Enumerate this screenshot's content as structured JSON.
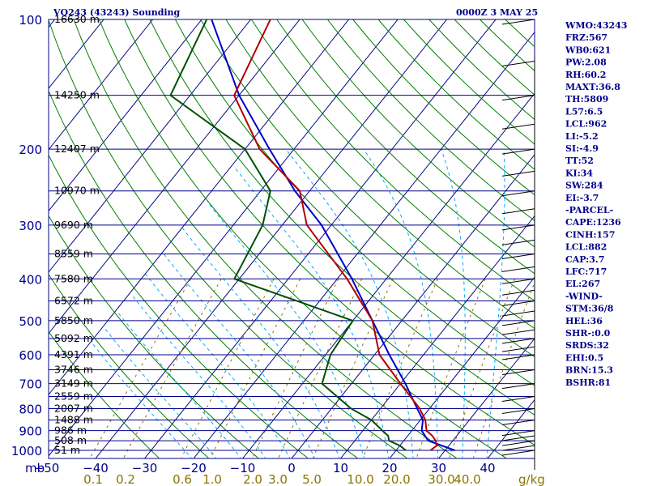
{
  "header": {
    "station": "VQ243 (43243) Sounding",
    "time": "0000Z  3 MAY 25"
  },
  "indices": [
    "WMO:43243",
    "FRZ:567",
    "WB0:621",
    "PW:2.08",
    "RH:60.2",
    "MAXT:36.8",
    "TH:5809",
    "L57:6.5",
    "LCL:962",
    "LI:-5.2",
    "SI:-4.9",
    "TT:52",
    "KI:34",
    "SW:284",
    "EI:-3.7",
    "-PARCEL-",
    "CAPE:1236",
    "CINH:157",
    "LCL:882",
    "CAP:3.7",
    "LFC:717",
    "EL:267",
    "-WIND-",
    "STM:36/8",
    "HEL:36",
    "SHR-:0.0",
    "SRDS:32",
    "EHI:0.5",
    "BRN:15.3",
    "BSHR:81"
  ],
  "colors": {
    "isobar": "#00008b",
    "isotherm": "#000080",
    "dry_adiabat": "#008000",
    "moist_adiabat": "#00aaff",
    "mixing_ratio": "#8b7500",
    "temperature": "#b00000",
    "dewpoint": "#005000",
    "parcel": "#0000c8"
  },
  "chart_data": {
    "type": "skew-t",
    "title": "VQ243 (43243) Sounding",
    "valid": "0000Z  3 MAY 25",
    "x_unit_label": "mb",
    "mixing_ratio_unit": "g/kg",
    "pressure_ticks": [
      100,
      200,
      300,
      400,
      500,
      600,
      700,
      800,
      900,
      1000
    ],
    "temperature_ticks": [
      -50,
      -40,
      -30,
      -20,
      -10,
      0,
      10,
      20,
      30,
      40
    ],
    "mixing_ratio_ticks": [
      "0.1",
      "0.2",
      "0.6",
      "1.0",
      "2.0",
      "3.0",
      "5.0",
      "10.0",
      "20.0",
      "30.0",
      "40.0"
    ],
    "height_levels": [
      {
        "p": 100,
        "label": "16630 m"
      },
      {
        "p": 150,
        "label": "14250 m"
      },
      {
        "p": 200,
        "label": "12407 m"
      },
      {
        "p": 250,
        "label": "10970 m"
      },
      {
        "p": 300,
        "label": "9690 m"
      },
      {
        "p": 350,
        "label": "8559 m"
      },
      {
        "p": 400,
        "label": "7580 m"
      },
      {
        "p": 450,
        "label": "6572 m"
      },
      {
        "p": 500,
        "label": "5850 m"
      },
      {
        "p": 550,
        "label": "5092 m"
      },
      {
        "p": 600,
        "label": "4391 m"
      },
      {
        "p": 650,
        "label": "3746 m"
      },
      {
        "p": 700,
        "label": "3149 m"
      },
      {
        "p": 750,
        "label": "2559 m"
      },
      {
        "p": 800,
        "label": "2007 m"
      },
      {
        "p": 850,
        "label": "1488 m"
      },
      {
        "p": 900,
        "label": "986 m"
      },
      {
        "p": 950,
        "label": "508 m"
      },
      {
        "p": 1000,
        "label": "51 m"
      }
    ],
    "temperature": [
      [
        1000,
        27
      ],
      [
        975,
        27.5
      ],
      [
        950,
        26.5
      ],
      [
        925,
        25
      ],
      [
        900,
        23
      ],
      [
        850,
        21
      ],
      [
        800,
        18
      ],
      [
        700,
        10
      ],
      [
        600,
        1
      ],
      [
        500,
        -6
      ],
      [
        400,
        -18
      ],
      [
        300,
        -35
      ],
      [
        250,
        -42
      ],
      [
        200,
        -57
      ],
      [
        150,
        -71
      ],
      [
        100,
        -76
      ]
    ],
    "dewpoint": [
      [
        1000,
        22
      ],
      [
        975,
        20
      ],
      [
        950,
        17
      ],
      [
        925,
        16
      ],
      [
        900,
        14
      ],
      [
        850,
        10
      ],
      [
        800,
        4
      ],
      [
        700,
        -6
      ],
      [
        600,
        -9
      ],
      [
        500,
        -10
      ],
      [
        400,
        -41
      ],
      [
        300,
        -44
      ],
      [
        250,
        -48
      ],
      [
        200,
        -60
      ],
      [
        150,
        -84
      ],
      [
        100,
        -89
      ]
    ],
    "parcel": [
      [
        1000,
        32
      ],
      [
        950,
        25
      ],
      [
        900,
        22
      ],
      [
        850,
        20.5
      ],
      [
        800,
        17.5
      ],
      [
        700,
        11
      ],
      [
        600,
        3
      ],
      [
        500,
        -6
      ],
      [
        400,
        -17
      ],
      [
        300,
        -32
      ],
      [
        250,
        -43
      ],
      [
        200,
        -55
      ],
      [
        150,
        -70
      ],
      [
        100,
        -88
      ]
    ],
    "wind_pressures": [
      100,
      125,
      150,
      175,
      200,
      225,
      250,
      275,
      300,
      325,
      350,
      375,
      400,
      425,
      450,
      475,
      500,
      525,
      550,
      575,
      600,
      650,
      700,
      750,
      800,
      850,
      900,
      925,
      950,
      975,
      1000
    ]
  }
}
